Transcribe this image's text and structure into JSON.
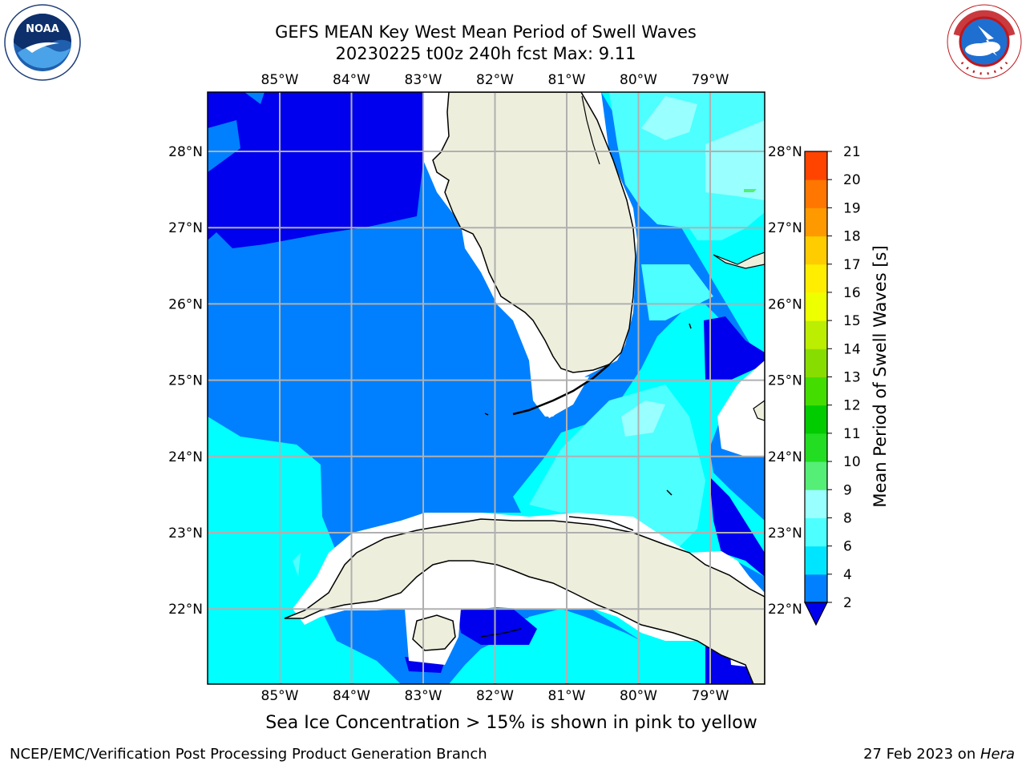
{
  "header": {
    "title_line1": "GEFS MEAN Key West Mean Period of Swell Waves",
    "title_line2": "20230225 t00z 240h fcst   Max: 9.11"
  },
  "logos": {
    "left": {
      "icon": "noaa-logo-icon",
      "text": "NOAA"
    },
    "right": {
      "icon": "nws-logo-icon",
      "text": "NATIONAL WEATHER SERVICE"
    }
  },
  "map": {
    "lon_labels": [
      "85°W",
      "84°W",
      "83°W",
      "82°W",
      "81°W",
      "80°W",
      "79°W"
    ],
    "lat_labels": [
      "28°N",
      "27°N",
      "26°N",
      "25°N",
      "24°N",
      "23°N",
      "22°N"
    ],
    "colors": {
      "dark_blue": "#0000ee",
      "blue": "#0080ff",
      "cyan": "#00ffff",
      "light_cyan": "#4dffff",
      "pale_cyan": "#99ffff",
      "land": "#eeeedd",
      "grid": "#b0b0b0"
    }
  },
  "colorbar": {
    "ticks": [
      "2",
      "4",
      "6",
      "8",
      "9",
      "10",
      "11",
      "12",
      "13",
      "14",
      "15",
      "16",
      "17",
      "18",
      "19",
      "20",
      "21"
    ],
    "colors": [
      "#0080ff",
      "#00e5ff",
      "#4dffff",
      "#99ffff",
      "#55ee77",
      "#22dd22",
      "#00cc00",
      "#44dd00",
      "#88dd00",
      "#bbee00",
      "#eeff00",
      "#ffee00",
      "#ffcc00",
      "#ff9900",
      "#ff7700",
      "#ff4400",
      "#ff0000"
    ],
    "under_color": "#0000ee",
    "label": "Mean Period of Swell Waves [s]"
  },
  "note": "Sea Ice Concentration > 15% is shown in pink to yellow",
  "footer": {
    "left": "NCEP/EMC/Verification Post Processing Product Generation Branch",
    "right_date": "27 Feb 2023 on ",
    "right_host": "Hera"
  }
}
